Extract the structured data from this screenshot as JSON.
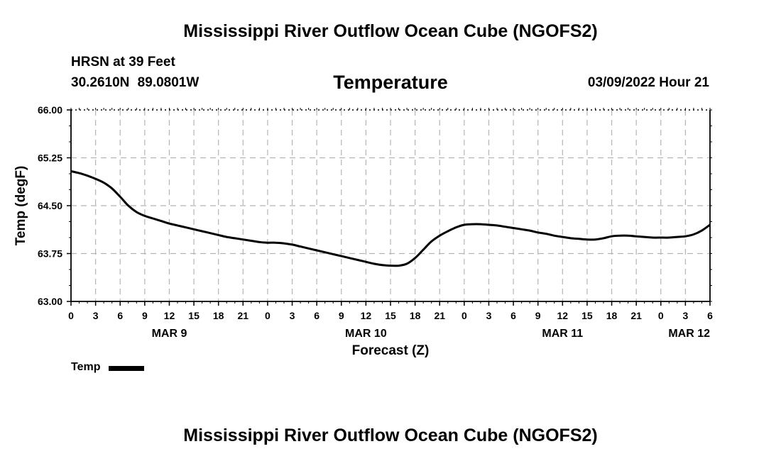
{
  "header": {
    "title": "Mississippi River Outflow Ocean Cube (NGOFS2)",
    "station": "HRSN at 39 Feet",
    "coords": "30.2610N  89.0801W",
    "subtitle": "Temperature",
    "datetime": "03/09/2022 Hour 21"
  },
  "footer": {
    "title": "Mississippi River Outflow Ocean Cube (NGOFS2)"
  },
  "legend": {
    "label": "Temp",
    "color": "#000000"
  },
  "chart_data": {
    "type": "line",
    "title": "Temperature",
    "xlabel": "Forecast (Z)",
    "ylabel": "Temp (degF)",
    "xlim": [
      0,
      78
    ],
    "ylim": [
      63.0,
      66.0
    ],
    "y_ticks": [
      "63.00",
      "63.75",
      "64.50",
      "65.25",
      "66.00"
    ],
    "y_tick_values": [
      63.0,
      63.75,
      64.5,
      65.25,
      66.0
    ],
    "x_tick_labels": [
      "0",
      "3",
      "6",
      "9",
      "12",
      "15",
      "18",
      "21",
      "0",
      "3",
      "6",
      "9",
      "12",
      "15",
      "18",
      "21",
      "0",
      "3",
      "6",
      "9",
      "12",
      "15",
      "18",
      "21",
      "0",
      "3",
      "6"
    ],
    "x_tick_step_hours": 3,
    "day_labels": [
      {
        "label": "MAR 9",
        "hour": 12
      },
      {
        "label": "MAR 10",
        "hour": 36
      },
      {
        "label": "MAR 11",
        "hour": 60
      },
      {
        "label": "MAR 12",
        "hour": 78
      }
    ],
    "grid": true,
    "series": [
      {
        "name": "Temp",
        "color": "#000000",
        "x": [
          0,
          1,
          2,
          3,
          4,
          5,
          6,
          7,
          8,
          9,
          10,
          11,
          12,
          13,
          14,
          15,
          16,
          17,
          18,
          19,
          20,
          21,
          22,
          23,
          24,
          25,
          26,
          27,
          28,
          29,
          30,
          31,
          32,
          33,
          34,
          35,
          36,
          37,
          38,
          39,
          40,
          41,
          42,
          43,
          44,
          45,
          46,
          47,
          48,
          49,
          50,
          51,
          52,
          53,
          54,
          55,
          56,
          57,
          58,
          59,
          60,
          61,
          62,
          63,
          64,
          65,
          66,
          67,
          68,
          69,
          70,
          71,
          72,
          73,
          74,
          75,
          76,
          77,
          78
        ],
        "y": [
          65.04,
          65.01,
          64.97,
          64.92,
          64.86,
          64.77,
          64.64,
          64.5,
          64.4,
          64.34,
          64.3,
          64.26,
          64.22,
          64.19,
          64.16,
          64.13,
          64.1,
          64.07,
          64.04,
          64.01,
          63.99,
          63.97,
          63.95,
          63.93,
          63.92,
          63.92,
          63.91,
          63.89,
          63.86,
          63.83,
          63.8,
          63.77,
          63.74,
          63.71,
          63.68,
          63.65,
          63.62,
          63.59,
          63.57,
          63.56,
          63.56,
          63.59,
          63.68,
          63.81,
          63.94,
          64.03,
          64.1,
          64.16,
          64.2,
          64.21,
          64.21,
          64.2,
          64.19,
          64.17,
          64.15,
          64.13,
          64.11,
          64.08,
          64.06,
          64.03,
          64.01,
          63.99,
          63.98,
          63.97,
          63.97,
          63.99,
          64.02,
          64.03,
          64.03,
          64.02,
          64.01,
          64.0,
          64.0,
          64.0,
          64.01,
          64.02,
          64.05,
          64.11,
          64.2
        ]
      }
    ]
  }
}
